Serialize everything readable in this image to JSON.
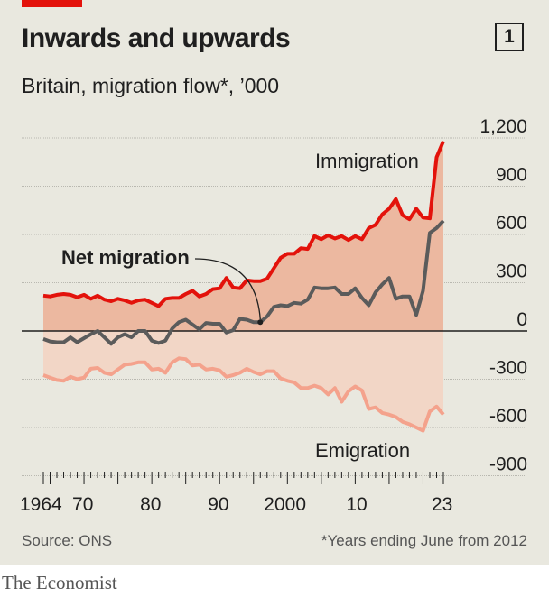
{
  "header": {
    "title": "Inwards and upwards",
    "chart_number": "1",
    "subtitle": "Britain, migration flow*, ’000"
  },
  "footer": {
    "source": "Source: ONS",
    "footnote": "*Years ending June from 2012",
    "brand": "The Economist"
  },
  "colors": {
    "immigration": "#e3120b",
    "net": "#5b5b5b",
    "emigration": "#f4a28c",
    "fill_upper": "#ecb8a0",
    "fill_lower": "#f2d6c6",
    "background": "#e9e8df"
  },
  "chart_data": {
    "type": "line",
    "title": "Inwards and upwards",
    "subtitle": "Britain, migration flow*, ’000",
    "ylim": [
      -900,
      1200
    ],
    "y_ticks": [
      1200,
      900,
      600,
      300,
      0,
      -300,
      -600,
      -900
    ],
    "y_tick_labels": [
      "1,200",
      "900",
      "600",
      "300",
      "0",
      "-300",
      "-600",
      "-900"
    ],
    "x_ticks": [
      1964,
      1970,
      1980,
      1990,
      2000,
      2010,
      2023
    ],
    "x_tick_labels": [
      "1964",
      "70",
      "80",
      "90",
      "2000",
      "10",
      "23"
    ],
    "grid": true,
    "fill_between_series": true,
    "annotations": [
      "Immigration",
      "Net migration",
      "Emigration"
    ],
    "series": [
      {
        "name": "Immigration",
        "x": [
          1964,
          1965,
          1966,
          1967,
          1968,
          1969,
          1970,
          1971,
          1972,
          1973,
          1974,
          1975,
          1976,
          1977,
          1978,
          1979,
          1980,
          1981,
          1982,
          1983,
          1984,
          1985,
          1986,
          1987,
          1988,
          1989,
          1990,
          1991,
          1992,
          1993,
          1994,
          1995,
          1996,
          1997,
          1998,
          1999,
          2000,
          2001,
          2002,
          2003,
          2004,
          2005,
          2006,
          2007,
          2008,
          2009,
          2010,
          2011,
          2012,
          2013,
          2014,
          2015,
          2016,
          2017,
          2018,
          2019,
          2020,
          2021,
          2022,
          2023
        ],
        "values": [
          220,
          215,
          225,
          230,
          225,
          210,
          225,
          200,
          220,
          195,
          185,
          200,
          190,
          175,
          190,
          195,
          175,
          155,
          200,
          205,
          205,
          230,
          250,
          215,
          230,
          260,
          265,
          330,
          270,
          265,
          315,
          310,
          310,
          325,
          390,
          455,
          480,
          480,
          515,
          510,
          590,
          570,
          595,
          575,
          590,
          565,
          590,
          570,
          640,
          660,
          725,
          760,
          820,
          720,
          695,
          760,
          705,
          700,
          1080,
          1180
        ]
      },
      {
        "name": "Net migration",
        "x": [
          1964,
          1965,
          1966,
          1967,
          1968,
          1969,
          1970,
          1971,
          1972,
          1973,
          1974,
          1975,
          1976,
          1977,
          1978,
          1979,
          1980,
          1981,
          1982,
          1983,
          1984,
          1985,
          1986,
          1987,
          1988,
          1989,
          1990,
          1991,
          1992,
          1993,
          1994,
          1995,
          1996,
          1997,
          1998,
          1999,
          2000,
          2001,
          2002,
          2003,
          2004,
          2005,
          2006,
          2007,
          2008,
          2009,
          2010,
          2011,
          2012,
          2013,
          2014,
          2015,
          2016,
          2017,
          2018,
          2019,
          2020,
          2021,
          2022,
          2023
        ],
        "values": [
          -50,
          -65,
          -70,
          -70,
          -40,
          -70,
          -45,
          -20,
          0,
          -40,
          -80,
          -40,
          -20,
          -40,
          0,
          0,
          -60,
          -75,
          -60,
          15,
          55,
          70,
          40,
          10,
          50,
          45,
          45,
          -10,
          5,
          75,
          70,
          55,
          55,
          90,
          150,
          160,
          155,
          175,
          170,
          195,
          270,
          265,
          265,
          270,
          230,
          230,
          265,
          205,
          160,
          240,
          290,
          330,
          200,
          215,
          215,
          100,
          250,
          610,
          640,
          685
        ]
      },
      {
        "name": "Emigration",
        "x": [
          1964,
          1965,
          1966,
          1967,
          1968,
          1969,
          1970,
          1971,
          1972,
          1973,
          1974,
          1975,
          1976,
          1977,
          1978,
          1979,
          1980,
          1981,
          1982,
          1983,
          1984,
          1985,
          1986,
          1987,
          1988,
          1989,
          1990,
          1991,
          1992,
          1993,
          1994,
          1995,
          1996,
          1997,
          1998,
          1999,
          2000,
          2001,
          2002,
          2003,
          2004,
          2005,
          2006,
          2007,
          2008,
          2009,
          2010,
          2011,
          2012,
          2013,
          2014,
          2015,
          2016,
          2017,
          2018,
          2019,
          2020,
          2021,
          2022,
          2023
        ],
        "values": [
          -275,
          -290,
          -305,
          -310,
          -285,
          -300,
          -290,
          -235,
          -230,
          -260,
          -270,
          -240,
          -210,
          -205,
          -195,
          -195,
          -240,
          -235,
          -260,
          -195,
          -170,
          -175,
          -215,
          -210,
          -240,
          -235,
          -245,
          -285,
          -275,
          -260,
          -235,
          -255,
          -270,
          -250,
          -250,
          -295,
          -310,
          -320,
          -355,
          -355,
          -340,
          -355,
          -395,
          -355,
          -440,
          -375,
          -345,
          -370,
          -485,
          -475,
          -510,
          -520,
          -535,
          -565,
          -580,
          -600,
          -620,
          -500,
          -470,
          -520
        ]
      }
    ]
  }
}
